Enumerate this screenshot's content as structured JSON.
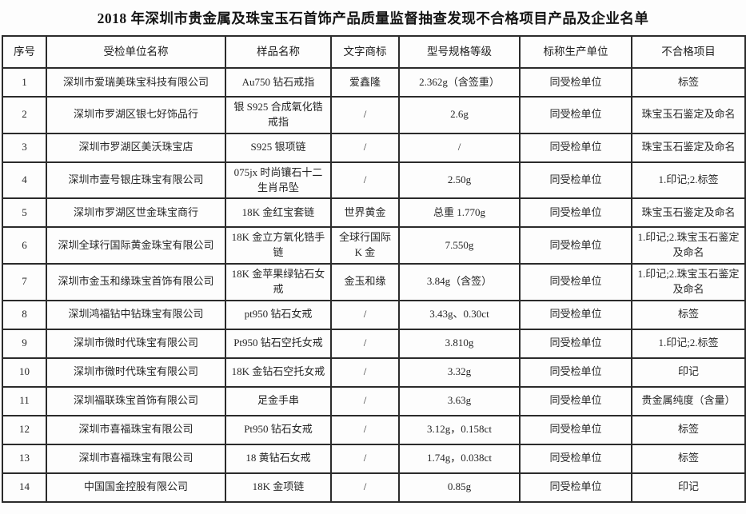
{
  "title": "2018 年深圳市贵金属及珠宝玉石首饰产品质量监督抽查发现不合格项目产品及企业名单",
  "table": {
    "headers": [
      "序号",
      "受检单位名称",
      "样品名称",
      "文字商标",
      "型号规格等级",
      "标称生产单位",
      "不合格项目"
    ],
    "rows": [
      [
        "1",
        "深圳市爱瑞美珠宝科技有限公司",
        "Au750 钻石戒指",
        "爱鑫隆",
        "2.362g（含签重）",
        "同受检单位",
        "标签"
      ],
      [
        "2",
        "深圳市罗湖区银七好饰品行",
        "银 S925 合成氧化锆戒指",
        "/",
        "2.6g",
        "同受检单位",
        "珠宝玉石鉴定及命名"
      ],
      [
        "3",
        "深圳市罗湖区美沃珠宝店",
        "S925 银项链",
        "/",
        "/",
        "同受检单位",
        "珠宝玉石鉴定及命名"
      ],
      [
        "4",
        "深圳市壹号银庄珠宝有限公司",
        "075jx 时尚镶石十二生肖吊坠",
        "/",
        "2.50g",
        "同受检单位",
        "1.印记;2.标签"
      ],
      [
        "5",
        "深圳市罗湖区世金珠宝商行",
        "18K 金红宝套链",
        "世界黄金",
        "总重 1.770g",
        "同受检单位",
        "珠宝玉石鉴定及命名"
      ],
      [
        "6",
        "深圳全球行国际黄金珠宝有限公司",
        "18K 金立方氧化锆手链",
        "全球行国际K 金",
        "7.550g",
        "同受检单位",
        "1.印记;2.珠宝玉石鉴定及命名"
      ],
      [
        "7",
        "深圳市金玉和缘珠宝首饰有限公司",
        "18K 金苹果绿钻石女戒",
        "金玉和缘",
        "3.84g（含签）",
        "同受检单位",
        "1.印记;2.珠宝玉石鉴定及命名"
      ],
      [
        "8",
        "深圳鸿福钻中钻珠宝有限公司",
        "pt950 钻石女戒",
        "/",
        "3.43g、0.30ct",
        "同受检单位",
        "标签"
      ],
      [
        "9",
        "深圳市微时代珠宝有限公司",
        "Pt950 钻石空托女戒",
        "/",
        "3.810g",
        "同受检单位",
        "1.印记;2.标签"
      ],
      [
        "10",
        "深圳市微时代珠宝有限公司",
        "18K 金钻石空托女戒",
        "/",
        "3.32g",
        "同受检单位",
        "印记"
      ],
      [
        "11",
        "深圳福联珠宝首饰有限公司",
        "足金手串",
        "/",
        "3.63g",
        "同受检单位",
        "贵金属纯度（含量）"
      ],
      [
        "12",
        "深圳市喜福珠宝有限公司",
        "Pt950 钻石女戒",
        "/",
        "3.12g，0.158ct",
        "同受检单位",
        "标签"
      ],
      [
        "13",
        "深圳市喜福珠宝有限公司",
        "18 黄钻石女戒",
        "/",
        "1.74g，0.038ct",
        "同受检单位",
        "标签"
      ],
      [
        "14",
        "中国国金控股有限公司",
        "18K 金项链",
        "/",
        "0.85g",
        "同受检单位",
        "印记"
      ]
    ],
    "column_names": [
      "row-number",
      "unit-name",
      "sample-name",
      "text-trademark",
      "model-spec-grade",
      "nominal-producer",
      "defect-items"
    ]
  },
  "colors": {
    "border": "#2b2b2b",
    "text": "#262626",
    "background": "#fdfdfd"
  }
}
